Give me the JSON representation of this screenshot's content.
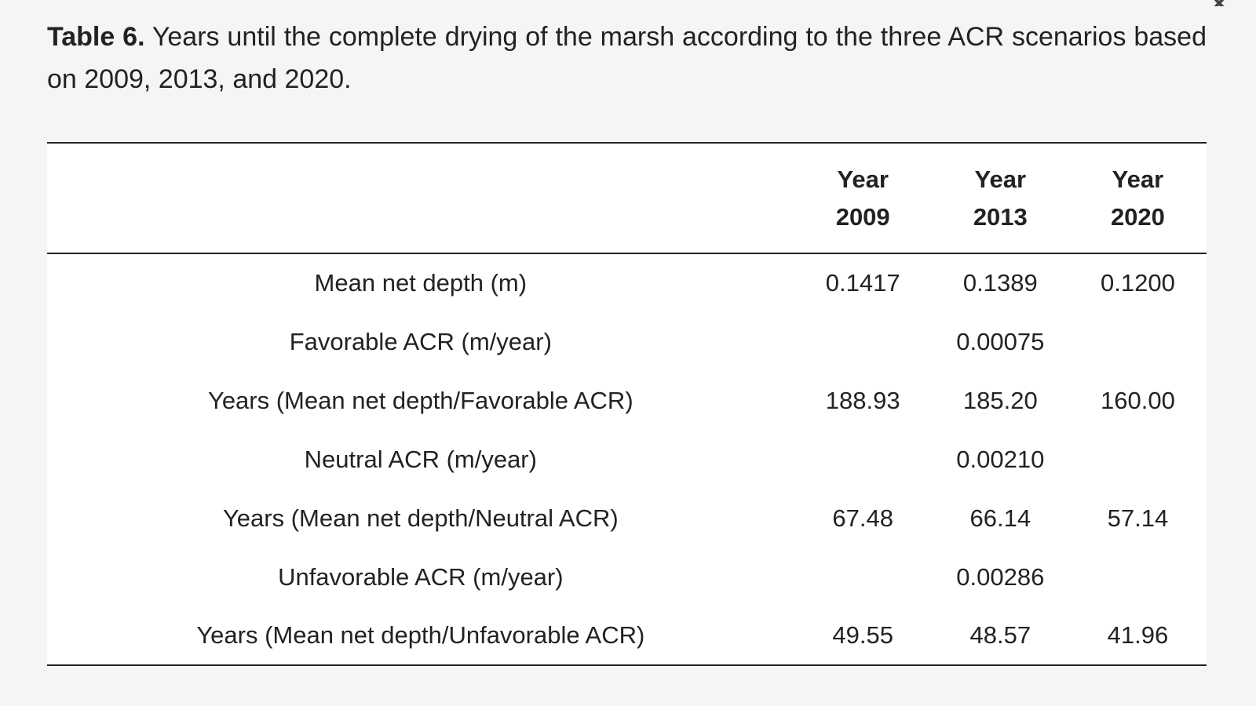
{
  "caption": {
    "label": "Table 6.",
    "text": " Years until the complete drying of the marsh according to the three ACR scenarios based on 2009, 2013, and 2020."
  },
  "table": {
    "headers": [
      {
        "line1": "",
        "line2": ""
      },
      {
        "line1": "Year",
        "line2": "2009"
      },
      {
        "line1": "Year",
        "line2": "2013"
      },
      {
        "line1": "Year",
        "line2": "2020"
      }
    ],
    "rows": [
      {
        "label": "Mean net depth (m)",
        "v2009": "0.1417",
        "v2013": "0.1389",
        "v2020": "0.1200"
      },
      {
        "label": "Favorable ACR (m/year)",
        "v2009": "",
        "v2013": "0.00075",
        "v2020": ""
      },
      {
        "label": "Years (Mean net depth/Favorable ACR)",
        "v2009": "188.93",
        "v2013": "185.20",
        "v2020": "160.00"
      },
      {
        "label": "Neutral ACR (m/year)",
        "v2009": "",
        "v2013": "0.00210",
        "v2020": ""
      },
      {
        "label": "Years (Mean net depth/Neutral ACR)",
        "v2009": "67.48",
        "v2013": "66.14",
        "v2020": "57.14"
      },
      {
        "label": "Unfavorable ACR (m/year)",
        "v2009": "",
        "v2013": "0.00286",
        "v2020": ""
      },
      {
        "label": "Years (Mean net depth/Unfavorable ACR)",
        "v2009": "49.55",
        "v2013": "48.57",
        "v2020": "41.96"
      }
    ]
  },
  "icons": {
    "close": "close-icon"
  }
}
